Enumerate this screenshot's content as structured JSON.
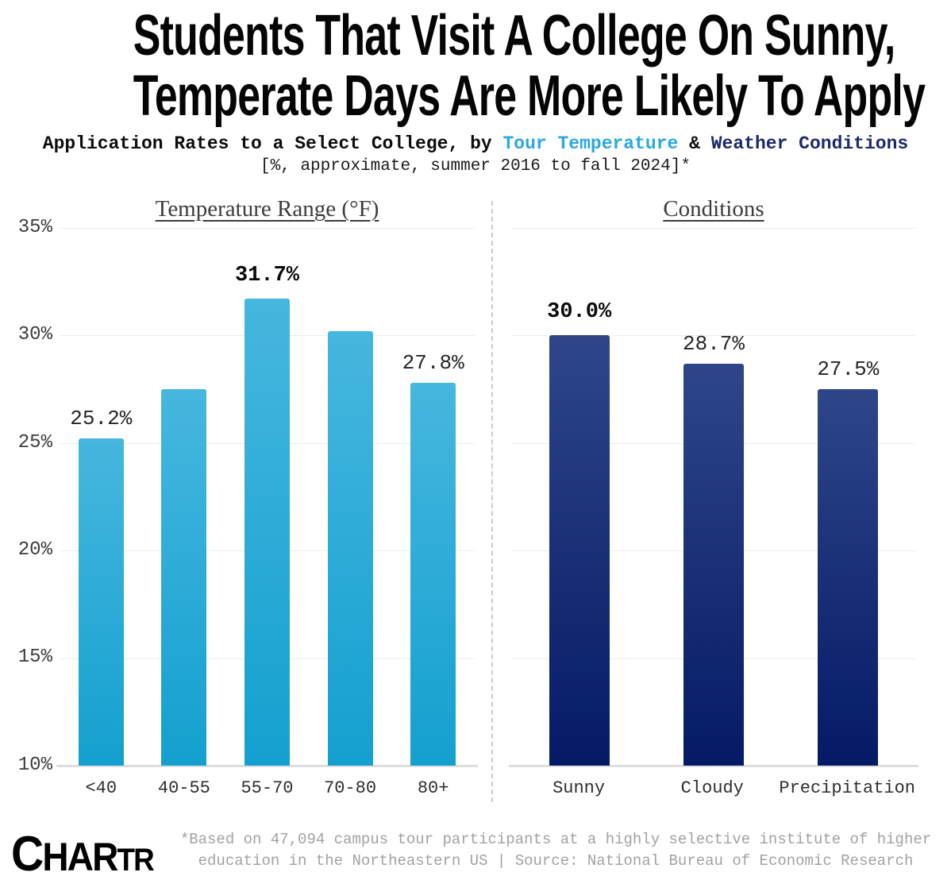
{
  "header": {
    "title_line1": "Students That Visit A College On Sunny,",
    "title_line2": "Temperate Days Are More Likely To Apply",
    "subtitle": {
      "prefix": "Application Rates to a Select College, by ",
      "highlight1": "Tour Temperature",
      "joiner": " & ",
      "highlight2": "Weather Conditions"
    },
    "subtitle_note": "[%, approximate, summer 2016 to fall 2024]*"
  },
  "chart_data": {
    "type": "bar",
    "title": "Application Rates to a Select College, by Tour Temperature & Weather Conditions [%, approximate, summer 2016 to fall 2024]",
    "ylim": [
      10,
      35
    ],
    "yticks": [
      "35%",
      "30%",
      "25%",
      "20%",
      "15%",
      "10%"
    ],
    "grid": true,
    "legend": "none",
    "panels": [
      {
        "title": "Temperature Range (°F)",
        "categories": [
          "<40",
          "40-55",
          "55-70",
          "70-80",
          "80+"
        ],
        "values": [
          25.2,
          27.5,
          31.7,
          30.2,
          27.8
        ],
        "bar_labels": [
          "25.2%",
          "",
          "31.7%",
          "",
          "27.8%"
        ],
        "bold_labels": [
          false,
          false,
          true,
          false,
          false
        ],
        "bar_color_top": "#46b7df",
        "bar_color_bottom": "#14a0cf"
      },
      {
        "title": "Conditions",
        "categories": [
          "Sunny",
          "Cloudy",
          "Precipitation"
        ],
        "values": [
          30.0,
          28.7,
          27.5
        ],
        "bar_labels": [
          "30.0%",
          "28.7%",
          "27.5%"
        ],
        "bold_labels": [
          true,
          false,
          false
        ],
        "bar_color_top": "#2e4689",
        "bar_color_bottom": "#041a66"
      }
    ]
  },
  "colors": {
    "highlight_cyan": "#29a8df",
    "highlight_navy": "#1b2a6b",
    "grid_line": "#ececec",
    "baseline": "#dedede",
    "divider": "#cbcbcb",
    "footnote_text": "#a2a2a2"
  },
  "footer": {
    "logo_letters": [
      "C",
      "H",
      "A",
      "R",
      "T",
      "R"
    ],
    "note_line1": "*Based on 47,094 campus tour participants at a highly selective institute of higher",
    "note_line2": "education in the Northeastern US | Source: National Bureau of Economic Research"
  }
}
